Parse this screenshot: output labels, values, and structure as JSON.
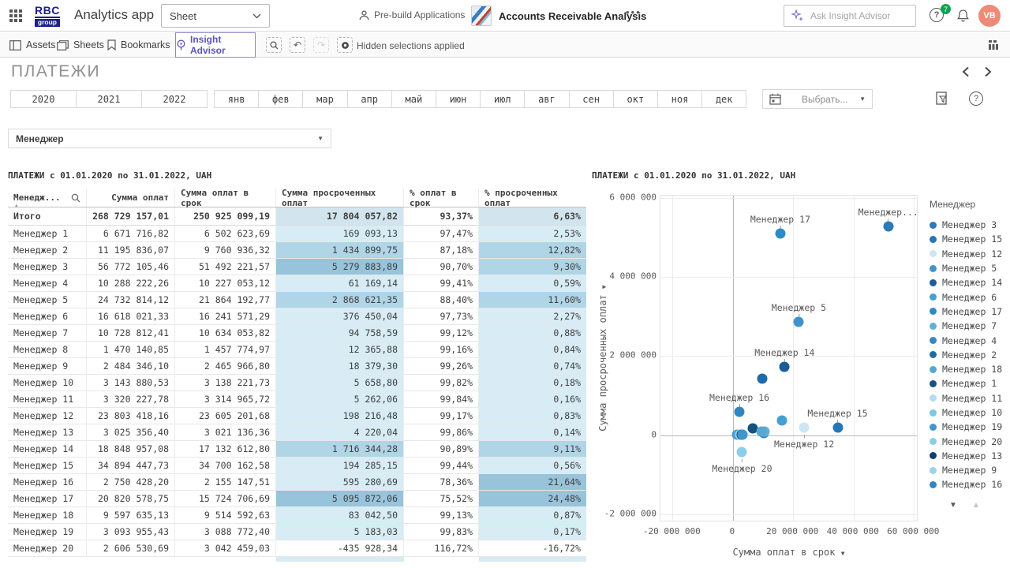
{
  "header": {
    "logo_line1": "RBC",
    "logo_line2": "group",
    "app_title": "Analytics app",
    "sheet_selector": "Sheet",
    "prebuild_label": "Pre-build Applications",
    "app_name": "Accounts Receivable Analysis",
    "more_label": "•••",
    "ask_placeholder": "Ask Insight Advisor",
    "help_badge": "7",
    "avatar_initials": "VB",
    "avatar_color": "#ee8a76",
    "badge_color": "#12a151"
  },
  "toolbar": {
    "tabs": [
      "Assets",
      "Sheets",
      "Bookmarks"
    ],
    "insight_advisor_label": "Insight Advisor",
    "insight_advisor_color": "#5c55b5",
    "hidden_selections_label": "Hidden selections applied"
  },
  "sheet": {
    "title": "ПЛАТЕЖИ",
    "years": [
      "2020",
      "2021",
      "2022"
    ],
    "months": [
      "янв",
      "фев",
      "мар",
      "апр",
      "май",
      "июн",
      "июл",
      "авг",
      "сен",
      "окт",
      "ноя",
      "дек"
    ],
    "date_picker_placeholder": "Выбрать...",
    "manager_filter_label": "Менеджер"
  },
  "table": {
    "title": "ПЛАТЕЖИ с 01.01.2020 по 31.01.2022, UAH",
    "columns": [
      "Менедж...",
      "Сумма оплат",
      "Сумма оплат в срок",
      "Сумма просроченных оплат",
      "% оплат в срок",
      "% просроченных оплат"
    ],
    "totals": {
      "name": "Итого",
      "paid": "268 729 157,01",
      "on_time": "250 925 099,19",
      "overdue": "17 804 057,82",
      "pct_on_time": "93,37%",
      "pct_overdue": "6,63%"
    },
    "rows": [
      {
        "name": "Менеджер 1",
        "paid": "6 671 716,82",
        "on_time": "6 502 623,69",
        "overdue": "169 093,13",
        "pct_on_time": "97,47%",
        "pct_overdue": "2,53%",
        "overdue_heat": "light",
        "pct_heat": "light"
      },
      {
        "name": "Менеджер 2",
        "paid": "11 195 836,07",
        "on_time": "9 760 936,32",
        "overdue": "1 434 899,75",
        "pct_on_time": "87,18%",
        "pct_overdue": "12,82%",
        "overdue_heat": "med",
        "pct_heat": "med"
      },
      {
        "name": "Менеджер 3",
        "paid": "56 772 105,46",
        "on_time": "51 492 221,57",
        "overdue": "5 279 883,89",
        "pct_on_time": "90,70%",
        "pct_overdue": "9,30%",
        "overdue_heat": "dark",
        "pct_heat": "med"
      },
      {
        "name": "Менеджер 4",
        "paid": "10 288 222,26",
        "on_time": "10 227 053,12",
        "overdue": "61 169,14",
        "pct_on_time": "99,41%",
        "pct_overdue": "0,59%",
        "overdue_heat": "light",
        "pct_heat": "light"
      },
      {
        "name": "Менеджер 5",
        "paid": "24 732 814,12",
        "on_time": "21 864 192,77",
        "overdue": "2 868 621,35",
        "pct_on_time": "88,40%",
        "pct_overdue": "11,60%",
        "overdue_heat": "med",
        "pct_heat": "med"
      },
      {
        "name": "Менеджер 6",
        "paid": "16 618 021,33",
        "on_time": "16 241 571,29",
        "overdue": "376 450,04",
        "pct_on_time": "97,73%",
        "pct_overdue": "2,27%",
        "overdue_heat": "light",
        "pct_heat": "light"
      },
      {
        "name": "Менеджер 7",
        "paid": "10 728 812,41",
        "on_time": "10 634 053,82",
        "overdue": "94 758,59",
        "pct_on_time": "99,12%",
        "pct_overdue": "0,88%",
        "overdue_heat": "light",
        "pct_heat": "light"
      },
      {
        "name": "Менеджер 8",
        "paid": "1 470 140,85",
        "on_time": "1 457 774,97",
        "overdue": "12 365,88",
        "pct_on_time": "99,16%",
        "pct_overdue": "0,84%",
        "overdue_heat": "light",
        "pct_heat": "light"
      },
      {
        "name": "Менеджер 9",
        "paid": "2 484 346,10",
        "on_time": "2 465 966,80",
        "overdue": "18 379,30",
        "pct_on_time": "99,26%",
        "pct_overdue": "0,74%",
        "overdue_heat": "light",
        "pct_heat": "light"
      },
      {
        "name": "Менеджер 10",
        "paid": "3 143 880,53",
        "on_time": "3 138 221,73",
        "overdue": "5 658,80",
        "pct_on_time": "99,82%",
        "pct_overdue": "0,18%",
        "overdue_heat": "light",
        "pct_heat": "light"
      },
      {
        "name": "Менеджер 11",
        "paid": "3 320 227,78",
        "on_time": "3 314 965,72",
        "overdue": "5 262,06",
        "pct_on_time": "99,84%",
        "pct_overdue": "0,16%",
        "overdue_heat": "light",
        "pct_heat": "light"
      },
      {
        "name": "Менеджер 12",
        "paid": "23 803 418,16",
        "on_time": "23 605 201,68",
        "overdue": "198 216,48",
        "pct_on_time": "99,17%",
        "pct_overdue": "0,83%",
        "overdue_heat": "light",
        "pct_heat": "light"
      },
      {
        "name": "Менеджер 13",
        "paid": "3 025 356,40",
        "on_time": "3 021 136,36",
        "overdue": "4 220,04",
        "pct_on_time": "99,86%",
        "pct_overdue": "0,14%",
        "overdue_heat": "light",
        "pct_heat": "light"
      },
      {
        "name": "Менеджер 14",
        "paid": "18 848 957,08",
        "on_time": "17 132 612,80",
        "overdue": "1 716 344,28",
        "pct_on_time": "90,89%",
        "pct_overdue": "9,11%",
        "overdue_heat": "med",
        "pct_heat": "med"
      },
      {
        "name": "Менеджер 15",
        "paid": "34 894 447,73",
        "on_time": "34 700 162,58",
        "overdue": "194 285,15",
        "pct_on_time": "99,44%",
        "pct_overdue": "0,56%",
        "overdue_heat": "light",
        "pct_heat": "light"
      },
      {
        "name": "Менеджер 16",
        "paid": "2 750 428,20",
        "on_time": "2 155 147,51",
        "overdue": "595 280,69",
        "pct_on_time": "78,36%",
        "pct_overdue": "21,64%",
        "overdue_heat": "light",
        "pct_heat": "dark"
      },
      {
        "name": "Менеджер 17",
        "paid": "20 820 578,75",
        "on_time": "15 724 706,69",
        "overdue": "5 095 872,06",
        "pct_on_time": "75,52%",
        "pct_overdue": "24,48%",
        "overdue_heat": "dark",
        "pct_heat": "dark"
      },
      {
        "name": "Менеджер 18",
        "paid": "9 597 635,13",
        "on_time": "9 514 592,63",
        "overdue": "83 042,50",
        "pct_on_time": "99,13%",
        "pct_overdue": "0,87%",
        "overdue_heat": "light",
        "pct_heat": "light"
      },
      {
        "name": "Менеджер 19",
        "paid": "3 093 955,43",
        "on_time": "3 088 772,40",
        "overdue": "5 183,03",
        "pct_on_time": "99,83%",
        "pct_overdue": "0,17%",
        "overdue_heat": "light",
        "pct_heat": "light"
      },
      {
        "name": "Менеджер 20",
        "paid": "2 606 530,69",
        "on_time": "3 042 459,03",
        "overdue": "-435 928,34",
        "pct_on_time": "116,72%",
        "pct_overdue": "-16,72%",
        "overdue_heat": "none",
        "pct_heat": "none"
      }
    ]
  },
  "chart_data": {
    "type": "scatter",
    "title": "ПЛАТЕЖИ с 01.01.2020 по 31.01.2022, UAH",
    "xlabel": "Сумма оплат в срок",
    "ylabel": "Сумма просроченных оплат",
    "xlim": [
      -24000000,
      61500000
    ],
    "ylim": [
      -2200000,
      6050000
    ],
    "x_ticks": [
      -20000000,
      0,
      20000000,
      40000000,
      60000000
    ],
    "x_tick_labels": [
      "-20 000 000",
      "0",
      "20 000 000",
      "40 000 000",
      "60 000 000"
    ],
    "y_ticks": [
      6000000,
      4000000,
      2000000,
      0,
      -2000000
    ],
    "y_tick_labels": [
      "6 000 000",
      "4 000 000",
      "2 000 000",
      "0",
      "-2 000 000"
    ],
    "grid": true,
    "legend_title": "Менеджер",
    "legend_position": "right",
    "points": [
      {
        "name": "Менеджер 1",
        "x": 6502623.69,
        "y": 169093.13,
        "color": "#14527f",
        "label": null
      },
      {
        "name": "Менеджер 2",
        "x": 9760936.32,
        "y": 1434899.75,
        "color": "#1e6bab",
        "label": null
      },
      {
        "name": "Менеджер 3",
        "x": 51492221.57,
        "y": 5279883.89,
        "color": "#2b7bb9",
        "label": "Менеджер...",
        "label_pos": "above"
      },
      {
        "name": "Менеджер 4",
        "x": 10227053.12,
        "y": 61169.14,
        "color": "#3587c1",
        "label": null
      },
      {
        "name": "Менеджер 5",
        "x": 21864192.77,
        "y": 2868621.35,
        "color": "#3e93cc",
        "label": "Менеджер 5",
        "label_pos": "above"
      },
      {
        "name": "Менеджер 6",
        "x": 16241571.29,
        "y": 376450.04,
        "color": "#45a0cf",
        "label": null
      },
      {
        "name": "Менеджер 7",
        "x": 10634053.82,
        "y": 94758.59,
        "color": "#64afd5",
        "label": null
      },
      {
        "name": "Менеджер 8",
        "x": 1457774.97,
        "y": 12365.88,
        "color": "#4d9fd0",
        "label": null
      },
      {
        "name": "Менеджер 9",
        "x": 2465966.8,
        "y": 18379.3,
        "color": "#9bd2ec",
        "label": null
      },
      {
        "name": "Менеджер 10",
        "x": 3138221.73,
        "y": 5658.8,
        "color": "#7cc6e6",
        "label": null
      },
      {
        "name": "Менеджер 11",
        "x": 3314965.72,
        "y": 5262.06,
        "color": "#b3dcf0",
        "label": null
      },
      {
        "name": "Менеджер 12",
        "x": 23605201.68,
        "y": 198216.48,
        "color": "#cde6f3",
        "label": "Менеджер 12",
        "label_pos": "below"
      },
      {
        "name": "Менеджер 13",
        "x": 3021136.36,
        "y": 4220.04,
        "color": "#123f6d",
        "label": null
      },
      {
        "name": "Менеджер 14",
        "x": 17132612.8,
        "y": 1716344.28,
        "color": "#1a5d97",
        "label": "Менеджер 14",
        "label_pos": "above"
      },
      {
        "name": "Менеджер 15",
        "x": 34700162.58,
        "y": 194285.15,
        "color": "#2576b5",
        "label": "Менеджер 15",
        "label_pos": "above"
      },
      {
        "name": "Менеджер 16",
        "x": 2155147.51,
        "y": 595280.69,
        "color": "#2f86c0",
        "label": "Менеджер 16",
        "label_pos": "above"
      },
      {
        "name": "Менеджер 17",
        "x": 15724706.69,
        "y": 5095872.06,
        "color": "#2e8ac6",
        "label": "Менеджер 17",
        "label_pos": "above"
      },
      {
        "name": "Менеджер 18",
        "x": 9514592.63,
        "y": 83042.5,
        "color": "#58a7d2",
        "label": null
      },
      {
        "name": "Менеджер 19",
        "x": 3088772.4,
        "y": 5183.03,
        "color": "#4197cb",
        "label": null
      },
      {
        "name": "Менеджер 20",
        "x": 3042459.03,
        "y": -435928.34,
        "color": "#8ccde9",
        "label": "Менеджер 20",
        "label_pos": "below"
      }
    ],
    "legend": [
      {
        "label": "Менеджер 3",
        "color": "#2b7bb9"
      },
      {
        "label": "Менеджер 15",
        "color": "#2576b5"
      },
      {
        "label": "Менеджер 12",
        "color": "#cde6f3"
      },
      {
        "label": "Менеджер 5",
        "color": "#3e93cc"
      },
      {
        "label": "Менеджер 14",
        "color": "#1a5d97"
      },
      {
        "label": "Менеджер 6",
        "color": "#45a0cf"
      },
      {
        "label": "Менеджер 17",
        "color": "#2e8ac6"
      },
      {
        "label": "Менеджер 7",
        "color": "#64afd5"
      },
      {
        "label": "Менеджер 4",
        "color": "#3587c1"
      },
      {
        "label": "Менеджер 2",
        "color": "#1e6bab"
      },
      {
        "label": "Менеджер 18",
        "color": "#58a7d2"
      },
      {
        "label": "Менеджер 1",
        "color": "#14527f"
      },
      {
        "label": "Менеджер 11",
        "color": "#b3dcf0"
      },
      {
        "label": "Менеджер 10",
        "color": "#7cc6e6"
      },
      {
        "label": "Менеджер 19",
        "color": "#4197cb"
      },
      {
        "label": "Менеджер 20",
        "color": "#8ccde9"
      },
      {
        "label": "Менеджер 13",
        "color": "#123f6d"
      },
      {
        "label": "Менеджер 9",
        "color": "#9bd2ec"
      },
      {
        "label": "Менеджер 16",
        "color": "#2f86c0"
      }
    ]
  }
}
